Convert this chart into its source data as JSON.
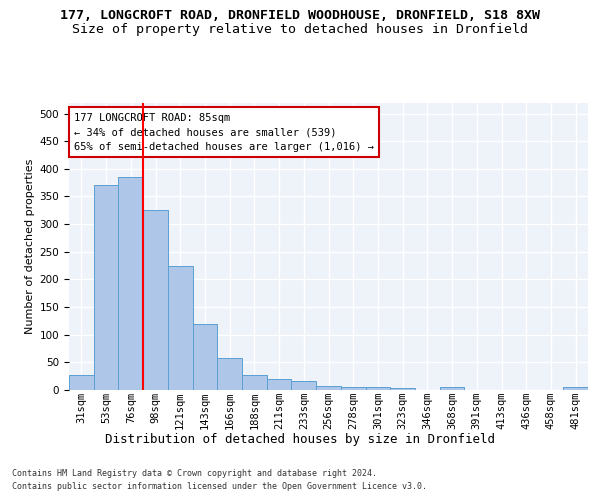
{
  "title1": "177, LONGCROFT ROAD, DRONFIELD WOODHOUSE, DRONFIELD, S18 8XW",
  "title2": "Size of property relative to detached houses in Dronfield",
  "xlabel": "Distribution of detached houses by size in Dronfield",
  "ylabel": "Number of detached properties",
  "footer1": "Contains HM Land Registry data © Crown copyright and database right 2024.",
  "footer2": "Contains public sector information licensed under the Open Government Licence v3.0.",
  "categories": [
    "31sqm",
    "53sqm",
    "76sqm",
    "98sqm",
    "121sqm",
    "143sqm",
    "166sqm",
    "188sqm",
    "211sqm",
    "233sqm",
    "256sqm",
    "278sqm",
    "301sqm",
    "323sqm",
    "346sqm",
    "368sqm",
    "391sqm",
    "413sqm",
    "436sqm",
    "458sqm",
    "481sqm"
  ],
  "values": [
    28,
    370,
    385,
    325,
    225,
    120,
    58,
    27,
    20,
    17,
    7,
    6,
    5,
    4,
    0,
    5,
    0,
    0,
    0,
    0,
    5
  ],
  "bar_color": "#aec6e8",
  "bar_edge_color": "#5a9fd4",
  "red_line_index": 2,
  "annotation_line1": "177 LONGCROFT ROAD: 85sqm",
  "annotation_line2": "← 34% of detached houses are smaller (539)",
  "annotation_line3": "65% of semi-detached houses are larger (1,016) →",
  "annotation_box_color": "#ffffff",
  "annotation_box_edge": "#cc0000",
  "ylim": [
    0,
    520
  ],
  "yticks": [
    0,
    50,
    100,
    150,
    200,
    250,
    300,
    350,
    400,
    450,
    500
  ],
  "background_color": "#eef2f9",
  "grid_color": "#ffffff",
  "title1_fontsize": 9.5,
  "title2_fontsize": 9.5,
  "xlabel_fontsize": 9,
  "ylabel_fontsize": 8,
  "tick_fontsize": 7.5,
  "footer_fontsize": 6
}
